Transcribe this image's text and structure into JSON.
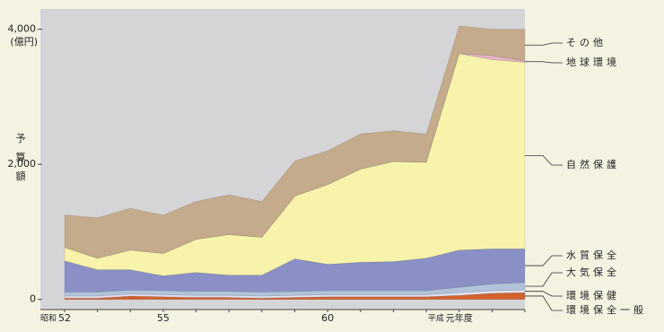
{
  "chart_data": {
    "type": "stacked-area",
    "y_label": "予算額",
    "y_unit": "(億円)",
    "era_labels": [
      "昭和",
      "平成"
    ],
    "categories": [
      "52",
      null,
      null,
      "55",
      null,
      null,
      null,
      null,
      "60",
      null,
      null,
      null,
      "元年度",
      null,
      null
    ],
    "ylim": [
      -150,
      4300
    ],
    "yticks": [
      0,
      {
        "value": 2000,
        "label": "2,000"
      },
      {
        "value": 4000,
        "label": "4,000"
      }
    ],
    "series": [
      {
        "name": "環境保全一般",
        "color": "#d2602c",
        "values": [
          20,
          20,
          50,
          40,
          30,
          30,
          20,
          30,
          40,
          40,
          40,
          40,
          60,
          90,
          100
        ]
      },
      {
        "name": "環境保健",
        "color": "#dfe2ee",
        "values": [
          30,
          30,
          30,
          30,
          30,
          30,
          30,
          30,
          30,
          30,
          30,
          30,
          40,
          40,
          40
        ]
      },
      {
        "name": "大気保全",
        "color": "#b2c2da",
        "values": [
          60,
          60,
          60,
          60,
          60,
          60,
          60,
          60,
          60,
          60,
          60,
          60,
          80,
          100,
          110
        ]
      },
      {
        "name": "水質保全",
        "color": "#8a90c6",
        "values": [
          460,
          330,
          300,
          220,
          280,
          240,
          250,
          480,
          390,
          420,
          430,
          480,
          550,
          520,
          500
        ]
      },
      {
        "name": "自然保護",
        "color": "#f7f3aa",
        "values": [
          200,
          170,
          290,
          330,
          490,
          600,
          560,
          930,
          1180,
          1380,
          1480,
          1420,
          2910,
          2800,
          2760
        ]
      },
      {
        "name": "地球環境",
        "color": "#e6b4c6",
        "values": [
          0,
          0,
          0,
          0,
          0,
          0,
          0,
          0,
          0,
          0,
          0,
          0,
          0,
          60,
          20
        ]
      },
      {
        "name": "その他",
        "color": "#c3ab8b",
        "values": [
          480,
          600,
          620,
          570,
          560,
          590,
          530,
          520,
          500,
          520,
          460,
          420,
          410,
          390,
          470
        ]
      }
    ]
  }
}
